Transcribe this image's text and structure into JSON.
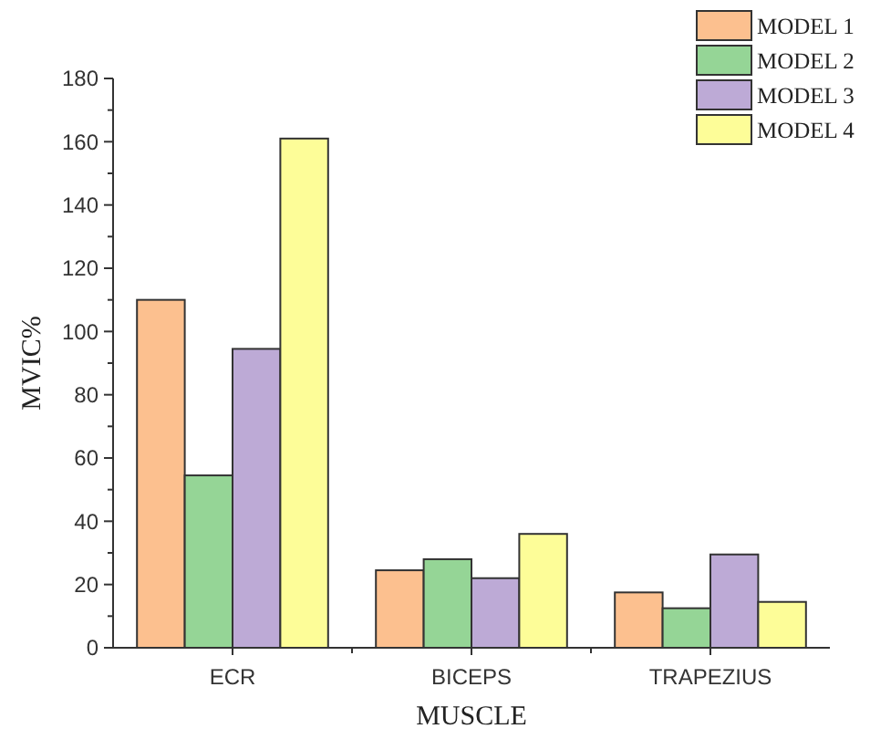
{
  "chart_data": {
    "type": "bar",
    "xlabel": "MUSCLE",
    "ylabel": "MVIC%",
    "categories": [
      "ECR",
      "BICEPS",
      "TRAPEZIUS"
    ],
    "series": [
      {
        "name": "MODEL 1",
        "color": "#fcc08f",
        "values": [
          110,
          24.5,
          17.5
        ]
      },
      {
        "name": "MODEL 2",
        "color": "#95d596",
        "values": [
          54.5,
          28,
          12.5
        ]
      },
      {
        "name": "MODEL 3",
        "color": "#bdaad6",
        "values": [
          94.5,
          22,
          29.5
        ]
      },
      {
        "name": "MODEL 4",
        "color": "#fdfd98",
        "values": [
          161,
          36,
          14.5
        ]
      }
    ],
    "ylim": [
      0,
      180
    ],
    "yticks": [
      0,
      20,
      40,
      60,
      80,
      100,
      120,
      140,
      160,
      180
    ],
    "grid": false,
    "legend": "top right"
  }
}
